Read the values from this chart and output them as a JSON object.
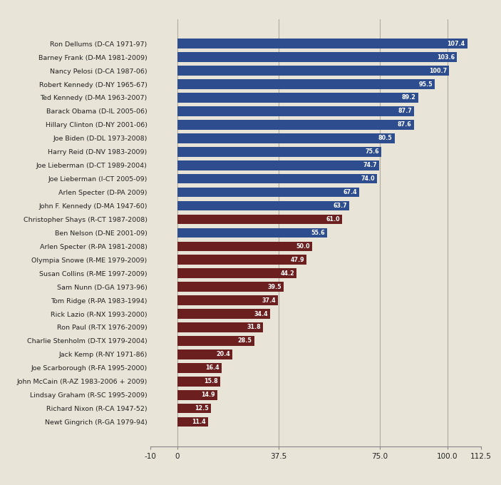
{
  "categories": [
    "Ron Dellums (D-CA 1971-97)",
    "Barney Frank (D-MA 1981-2009)",
    "Nancy Pelosi (D-CA 1987-06)",
    "Robert Kennedy (D-NY 1965-67)",
    "Ted Kennedy (D-MA 1963-2007)",
    "Barack Obama (D-IL 2005-06)",
    "Hillary Clinton (D-NY 2001-06)",
    "Joe Biden (D-DL 1973-2008)",
    "Harry Reid (D-NV 1983-2009)",
    "Joe Lieberman (D-CT 1989-2004)",
    "Joe Lieberman (I-CT 2005-09)",
    "Arlen Specter (D-PA 2009)",
    "John F. Kennedy (D-MA 1947-60)",
    "Christopher Shays (R-CT 1987-2008)",
    "Ben Nelson (D-NE 2001-09)",
    "Arlen Specter (R-PA 1981-2008)",
    "Olympia Snowe (R-ME 1979-2009)",
    "Susan Collins (R-ME 1997-2009)",
    "Sam Nunn (D-GA 1973-96)",
    "Tom Ridge (R-PA 1983-1994)",
    "Rick Lazio (R-NX 1993-2000)",
    "Ron Paul (R-TX 1976-2009)",
    "Charlie Stenholm (D-TX 1979-2004)",
    "Jack Kemp (R-NY 1971-86)",
    "Joe Scarborough (R-FA 1995-2000)",
    "John McCain (R-AZ 1983-2006 + 2009)",
    "Lindsay Graham (R-SC 1995-2009)",
    "Richard Nixon (R-CA 1947-52)",
    "Newt Gingrich (R-GA 1979-94)"
  ],
  "values": [
    107.4,
    103.6,
    100.7,
    95.5,
    89.2,
    87.7,
    87.6,
    80.5,
    75.6,
    74.7,
    74.0,
    67.4,
    63.7,
    61.0,
    55.6,
    50.0,
    47.9,
    44.2,
    39.5,
    37.4,
    34.4,
    31.8,
    28.5,
    20.4,
    16.4,
    15.8,
    14.9,
    12.5,
    11.4
  ],
  "colors": [
    "#2e4d8e",
    "#2e4d8e",
    "#2e4d8e",
    "#2e4d8e",
    "#2e4d8e",
    "#2e4d8e",
    "#2e4d8e",
    "#2e4d8e",
    "#2e4d8e",
    "#2e4d8e",
    "#2e4d8e",
    "#2e4d8e",
    "#2e4d8e",
    "#6b1f1f",
    "#2e4d8e",
    "#6b1f1f",
    "#6b1f1f",
    "#6b1f1f",
    "#6b1f1f",
    "#6b1f1f",
    "#6b1f1f",
    "#6b1f1f",
    "#6b1f1f",
    "#6b1f1f",
    "#6b1f1f",
    "#6b1f1f",
    "#6b1f1f",
    "#6b1f1f",
    "#6b1f1f"
  ],
  "xlim": [
    -10,
    112.5
  ],
  "xticks": [
    -10,
    0,
    37.5,
    75.0,
    100.0,
    112.5
  ],
  "xticklabels": [
    "-10",
    "0",
    "37.5",
    "75.0",
    "100.0",
    "112.5"
  ],
  "vlines": [
    0,
    37.5,
    75.0,
    100.0
  ],
  "background_color": "#e8e4d8",
  "bar_height": 0.72,
  "text_color": "#ffffff",
  "label_fontsize": 6.8,
  "value_fontsize": 5.8,
  "tick_fontsize": 7.5
}
